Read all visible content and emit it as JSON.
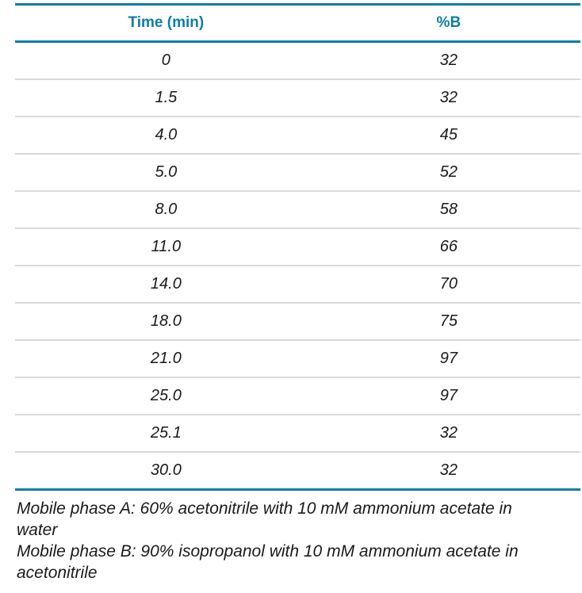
{
  "table": {
    "columns": {
      "time": "Time (min)",
      "percent_b": "%B"
    },
    "rows": [
      [
        "0",
        "32"
      ],
      [
        "1.5",
        "32"
      ],
      [
        "4.0",
        "45"
      ],
      [
        "5.0",
        "52"
      ],
      [
        "8.0",
        "58"
      ],
      [
        "11.0",
        "66"
      ],
      [
        "14.0",
        "70"
      ],
      [
        "18.0",
        "75"
      ],
      [
        "21.0",
        "97"
      ],
      [
        "25.0",
        "97"
      ],
      [
        "25.1",
        "32"
      ],
      [
        "30.0",
        "32"
      ]
    ]
  },
  "notes": [
    {
      "lines": [
        "Mobile phase A: 60% acetonitrile with 10 mM ammonium acetate in",
        "water"
      ],
      "full_text": "Mobile phase A: 60% acetonitrile with 10 mM ammonium acetate in water"
    },
    {
      "lines": [
        "Mobile phase B: 90% isopropanol with 10 mM ammonium acetate in",
        "acetonitrile"
      ],
      "full_text": "Mobile phase B: 90% isopropanol with 10 mM ammonium acetate in acetonitrile"
    }
  ],
  "colors": {
    "accent_teal": "#0e7da6",
    "row_divider_gray": "#d9d9d9",
    "body_text": "#1a1a1a"
  }
}
